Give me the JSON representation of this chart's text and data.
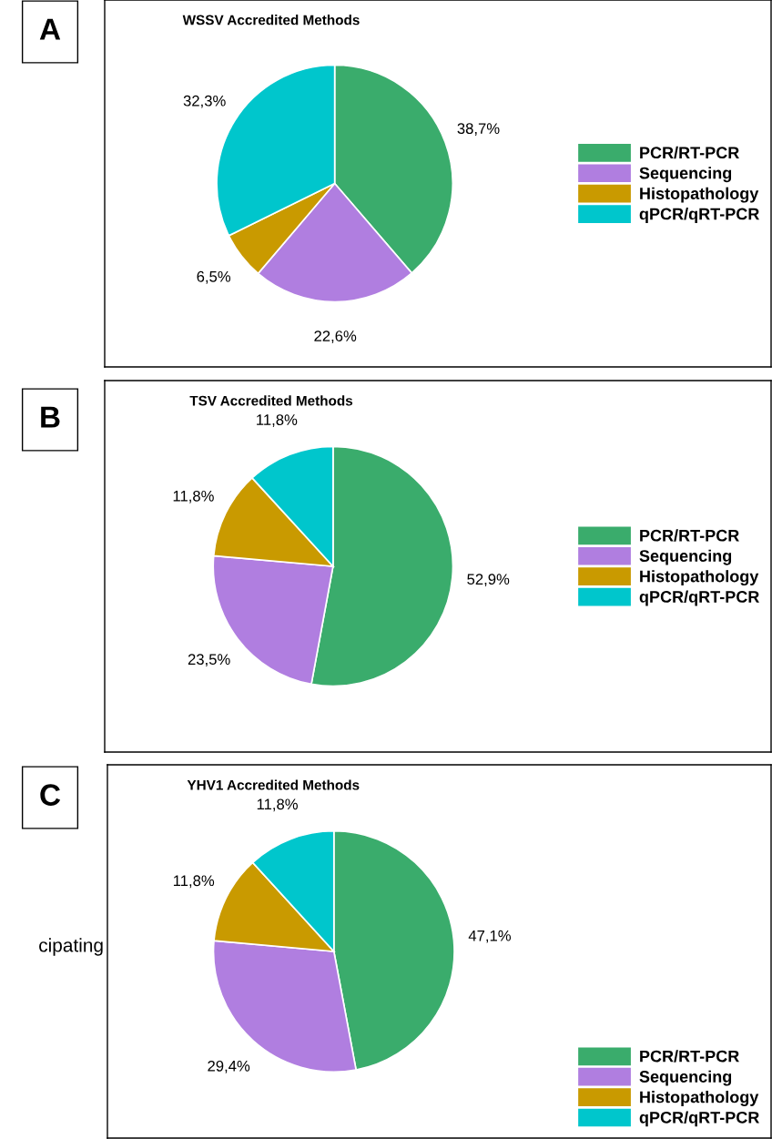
{
  "chart_data": [
    {
      "type": "pie",
      "title": "WSSV Accredited Methods",
      "categories": [
        "PCR/RT-PCR",
        "Sequencing",
        "Histopathology",
        "qPCR/qRT-PCR"
      ],
      "values": [
        38.7,
        22.6,
        6.5,
        32.3
      ],
      "value_labels": [
        "38,7%",
        "22,6%",
        "6,5%",
        "32,3%"
      ],
      "colors": [
        "#3aac6c",
        "#b07ee0",
        "#c99a00",
        "#00c6cc"
      ],
      "legend": "right",
      "annotations": [
        "A"
      ]
    },
    {
      "type": "pie",
      "title": "TSV Accredited Methods",
      "categories": [
        "PCR/RT-PCR",
        "Sequencing",
        "Histopathology",
        "qPCR/qRT-PCR"
      ],
      "values": [
        52.9,
        23.5,
        11.8,
        11.8
      ],
      "value_labels": [
        "52,9%",
        "23,5%",
        "11,8%",
        "11,8%"
      ],
      "colors": [
        "#3aac6c",
        "#b07ee0",
        "#c99a00",
        "#00c6cc"
      ],
      "legend": "right",
      "annotations": [
        "B"
      ]
    },
    {
      "type": "pie",
      "title": "YHV1 Accredited Methods",
      "categories": [
        "PCR/RT-PCR",
        "Sequencing",
        "Histopathology",
        "qPCR/qRT-PCR"
      ],
      "values": [
        47.1,
        29.4,
        11.8,
        11.8
      ],
      "value_labels": [
        "47,1%",
        "29,4%",
        "11,8%",
        "11,8%"
      ],
      "colors": [
        "#3aac6c",
        "#b07ee0",
        "#c99a00",
        "#00c6cc"
      ],
      "legend": "lower right",
      "annotations": [
        "C",
        "cipating"
      ]
    }
  ]
}
